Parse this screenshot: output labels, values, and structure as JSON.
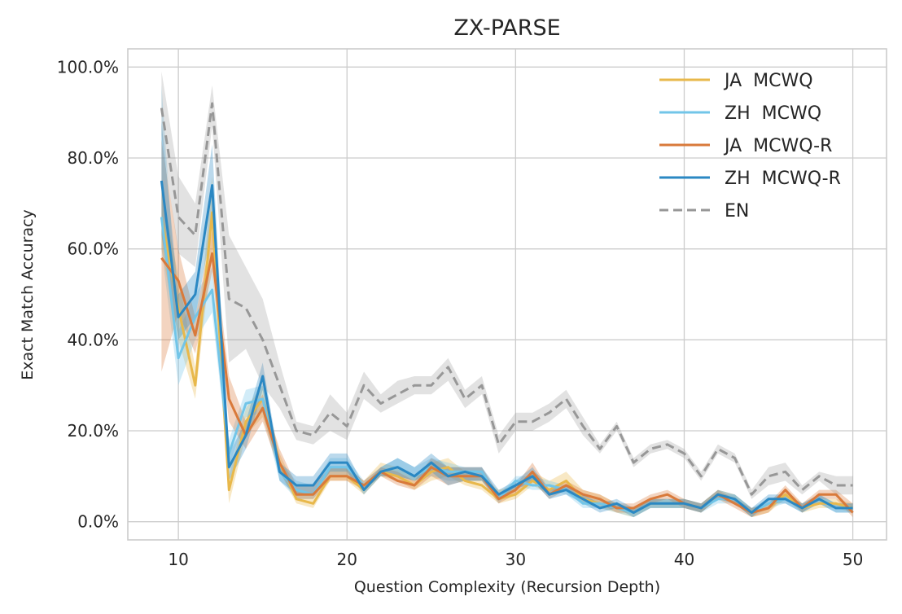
{
  "chart_data": {
    "type": "line",
    "title": "ZX-PARSE",
    "xlabel": "Question Complexity (Recursion Depth)",
    "ylabel": "Exact Match Accuracy",
    "xlim": [
      7,
      52
    ],
    "ylim": [
      -4,
      104
    ],
    "x_ticks": [
      10,
      20,
      30,
      40,
      50
    ],
    "x_tick_labels": [
      "10",
      "20",
      "30",
      "40",
      "50"
    ],
    "y_ticks": [
      0,
      20,
      40,
      60,
      80,
      100
    ],
    "y_tick_labels": [
      "0.0%",
      "20.0%",
      "40.0%",
      "60.0%",
      "80.0%",
      "100.0%"
    ],
    "grid": true,
    "legend_position": "upper-right",
    "x": [
      9,
      10,
      11,
      12,
      13,
      14,
      15,
      16,
      17,
      18,
      19,
      20,
      21,
      22,
      23,
      24,
      25,
      26,
      27,
      28,
      29,
      30,
      31,
      32,
      33,
      34,
      35,
      36,
      37,
      38,
      39,
      40,
      41,
      42,
      43,
      44,
      45,
      46,
      47,
      48,
      49,
      50
    ],
    "series": [
      {
        "name": "JA  MCWQ",
        "color": "#e8b84b",
        "dash": "solid",
        "values": [
          67,
          47,
          30,
          68,
          7,
          22,
          27,
          13,
          5,
          4,
          10,
          10,
          7,
          11,
          10,
          8,
          11,
          12,
          9,
          8,
          5,
          6,
          9,
          7,
          9,
          5,
          4,
          3,
          2,
          4,
          4,
          4,
          3,
          6,
          5,
          2,
          3,
          6,
          3,
          4,
          4,
          3
        ],
        "band": [
          [
            60,
            73
          ],
          [
            40,
            54
          ],
          [
            27,
            34
          ],
          [
            60,
            76
          ],
          [
            4,
            10
          ],
          [
            19,
            25
          ],
          [
            23,
            30
          ],
          [
            11,
            15
          ],
          [
            4,
            7
          ],
          [
            3,
            6
          ],
          [
            9,
            12
          ],
          [
            9,
            12
          ],
          [
            6,
            9
          ],
          [
            10,
            13
          ],
          [
            9,
            12
          ],
          [
            7,
            10
          ],
          [
            9,
            13
          ],
          [
            10,
            14
          ],
          [
            8,
            11
          ],
          [
            7,
            10
          ],
          [
            4,
            7
          ],
          [
            5,
            8
          ],
          [
            8,
            11
          ],
          [
            6,
            9
          ],
          [
            8,
            11
          ],
          [
            4,
            7
          ],
          [
            3,
            6
          ],
          [
            2,
            4
          ],
          [
            1,
            3
          ],
          [
            3,
            5
          ],
          [
            3,
            5
          ],
          [
            3,
            5
          ],
          [
            2,
            4
          ],
          [
            5,
            7
          ],
          [
            4,
            6
          ],
          [
            1,
            3
          ],
          [
            2,
            4
          ],
          [
            5,
            7
          ],
          [
            2,
            4
          ],
          [
            3,
            5
          ],
          [
            3,
            5
          ],
          [
            2,
            4
          ]
        ]
      },
      {
        "name": "ZH  MCWQ",
        "color": "#72c5e8",
        "dash": "solid",
        "values": [
          67,
          36,
          45,
          51,
          15,
          26,
          27,
          11,
          7,
          6,
          12,
          12,
          8,
          11,
          12,
          10,
          12,
          11,
          11,
          11,
          5,
          9,
          8,
          8,
          7,
          4,
          4,
          3,
          2,
          4,
          4,
          4,
          3,
          5,
          5,
          2,
          4,
          5,
          3,
          5,
          3,
          3
        ],
        "band": [
          [
            60,
            96
          ],
          [
            30,
            42
          ],
          [
            40,
            50
          ],
          [
            46,
            56
          ],
          [
            12,
            18
          ],
          [
            23,
            29
          ],
          [
            24,
            30
          ],
          [
            9,
            13
          ],
          [
            5,
            9
          ],
          [
            5,
            8
          ],
          [
            10,
            14
          ],
          [
            10,
            14
          ],
          [
            7,
            9
          ],
          [
            10,
            12
          ],
          [
            10,
            14
          ],
          [
            9,
            12
          ],
          [
            10,
            14
          ],
          [
            9,
            13
          ],
          [
            9,
            12
          ],
          [
            9,
            12
          ],
          [
            4,
            6
          ],
          [
            8,
            10
          ],
          [
            7,
            10
          ],
          [
            7,
            9
          ],
          [
            6,
            8
          ],
          [
            3,
            5
          ],
          [
            3,
            5
          ],
          [
            2,
            4
          ],
          [
            1,
            3
          ],
          [
            3,
            5
          ],
          [
            3,
            5
          ],
          [
            3,
            5
          ],
          [
            2,
            4
          ],
          [
            4,
            6
          ],
          [
            4,
            6
          ],
          [
            1,
            3
          ],
          [
            3,
            5
          ],
          [
            4,
            6
          ],
          [
            2,
            4
          ],
          [
            4,
            6
          ],
          [
            2,
            4
          ],
          [
            2,
            4
          ]
        ]
      },
      {
        "name": "JA  MCWQ-R",
        "color": "#d97a3b",
        "dash": "solid",
        "values": [
          58,
          53,
          41,
          59,
          27,
          19,
          25,
          13,
          6,
          6,
          10,
          10,
          8,
          11,
          9,
          8,
          12,
          10,
          10,
          10,
          5,
          7,
          11,
          6,
          8,
          6,
          5,
          3,
          3,
          5,
          6,
          4,
          3,
          6,
          4,
          2,
          3,
          7,
          3,
          6,
          6,
          2
        ],
        "band": [
          [
            33,
            84
          ],
          [
            46,
            60
          ],
          [
            37,
            45
          ],
          [
            55,
            64
          ],
          [
            22,
            32
          ],
          [
            16,
            22
          ],
          [
            22,
            28
          ],
          [
            11,
            16
          ],
          [
            5,
            8
          ],
          [
            5,
            8
          ],
          [
            9,
            12
          ],
          [
            9,
            12
          ],
          [
            7,
            9
          ],
          [
            10,
            12
          ],
          [
            8,
            11
          ],
          [
            7,
            9
          ],
          [
            10,
            14
          ],
          [
            8,
            12
          ],
          [
            9,
            12
          ],
          [
            9,
            12
          ],
          [
            4,
            6
          ],
          [
            6,
            8
          ],
          [
            9,
            13
          ],
          [
            5,
            7
          ],
          [
            7,
            9
          ],
          [
            5,
            7
          ],
          [
            4,
            6
          ],
          [
            2,
            4
          ],
          [
            2,
            4
          ],
          [
            4,
            6
          ],
          [
            5,
            7
          ],
          [
            3,
            5
          ],
          [
            2,
            4
          ],
          [
            5,
            7
          ],
          [
            3,
            5
          ],
          [
            1,
            3
          ],
          [
            2,
            4
          ],
          [
            6,
            8
          ],
          [
            2,
            4
          ],
          [
            5,
            7
          ],
          [
            5,
            7
          ],
          [
            1,
            4
          ]
        ]
      },
      {
        "name": "ZH  MCWQ-R",
        "color": "#2b88c3",
        "dash": "solid",
        "values": [
          75,
          45,
          50,
          74,
          12,
          19,
          32,
          11,
          8,
          8,
          13,
          13,
          7,
          11,
          12,
          10,
          13,
          10,
          11,
          10,
          6,
          8,
          10,
          6,
          7,
          5,
          3,
          4,
          2,
          4,
          4,
          4,
          3,
          6,
          5,
          2,
          5,
          5,
          3,
          5,
          3,
          3
        ],
        "band": [
          [
            63,
            88
          ],
          [
            40,
            50
          ],
          [
            45,
            55
          ],
          [
            65,
            83
          ],
          [
            9,
            15
          ],
          [
            16,
            22
          ],
          [
            29,
            35
          ],
          [
            9,
            13
          ],
          [
            6,
            10
          ],
          [
            6,
            10
          ],
          [
            11,
            15
          ],
          [
            11,
            15
          ],
          [
            6,
            8
          ],
          [
            10,
            12
          ],
          [
            10,
            14
          ],
          [
            9,
            12
          ],
          [
            11,
            15
          ],
          [
            8,
            12
          ],
          [
            9,
            12
          ],
          [
            9,
            12
          ],
          [
            5,
            7
          ],
          [
            7,
            9
          ],
          [
            9,
            12
          ],
          [
            5,
            7
          ],
          [
            6,
            8
          ],
          [
            4,
            6
          ],
          [
            2,
            4
          ],
          [
            3,
            5
          ],
          [
            1,
            3
          ],
          [
            3,
            5
          ],
          [
            3,
            5
          ],
          [
            3,
            5
          ],
          [
            2,
            4
          ],
          [
            5,
            7
          ],
          [
            4,
            6
          ],
          [
            1,
            3
          ],
          [
            4,
            6
          ],
          [
            4,
            6
          ],
          [
            2,
            4
          ],
          [
            4,
            6
          ],
          [
            2,
            4
          ],
          [
            2,
            4
          ]
        ]
      },
      {
        "name": "EN",
        "color": "#979797",
        "dash": "dashed",
        "values": [
          91,
          67,
          63,
          92,
          49,
          47,
          40,
          30,
          20,
          19,
          24,
          21,
          30,
          26,
          28,
          30,
          30,
          34,
          27,
          30,
          17,
          22,
          22,
          24,
          27,
          21,
          16,
          21,
          13,
          16,
          17,
          15,
          10,
          16,
          14,
          6,
          10,
          11,
          7,
          10,
          8,
          8
        ],
        "band": [
          [
            85,
            99
          ],
          [
            59,
            76
          ],
          [
            56,
            70
          ],
          [
            87,
            96
          ],
          [
            35,
            63
          ],
          [
            38,
            56
          ],
          [
            30,
            49
          ],
          [
            25,
            35
          ],
          [
            18,
            22
          ],
          [
            17,
            21
          ],
          [
            20,
            28
          ],
          [
            18,
            24
          ],
          [
            27,
            33
          ],
          [
            24,
            28
          ],
          [
            26,
            31
          ],
          [
            28,
            32
          ],
          [
            28,
            32
          ],
          [
            31,
            36
          ],
          [
            25,
            29
          ],
          [
            28,
            32
          ],
          [
            15,
            19
          ],
          [
            20,
            24
          ],
          [
            20,
            24
          ],
          [
            22,
            26
          ],
          [
            25,
            29
          ],
          [
            19,
            23
          ],
          [
            15,
            17
          ],
          [
            20,
            22
          ],
          [
            12,
            14
          ],
          [
            15,
            17
          ],
          [
            16,
            18
          ],
          [
            14,
            16
          ],
          [
            9,
            11
          ],
          [
            15,
            17
          ],
          [
            13,
            15
          ],
          [
            5,
            7
          ],
          [
            8,
            12
          ],
          [
            9,
            13
          ],
          [
            6,
            8
          ],
          [
            9,
            11
          ],
          [
            6,
            10
          ],
          [
            6,
            10
          ]
        ]
      }
    ]
  }
}
